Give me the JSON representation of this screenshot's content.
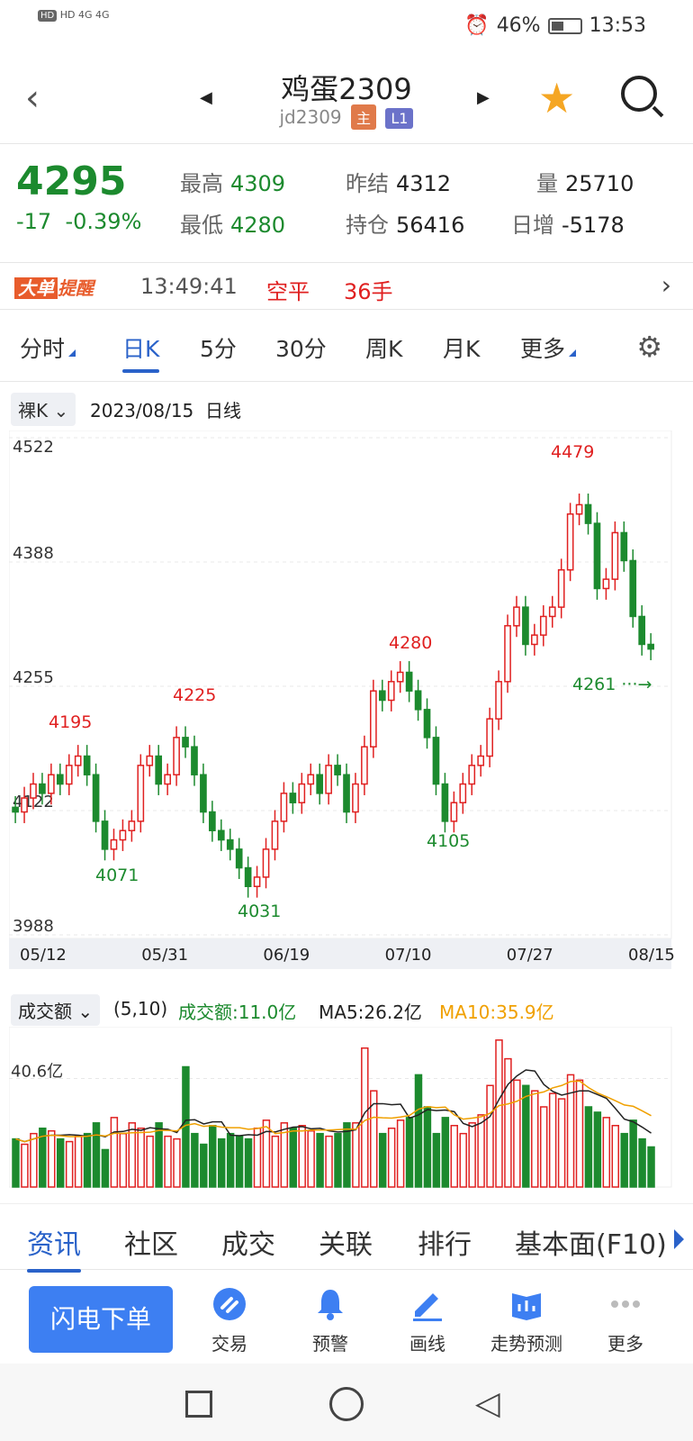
{
  "status": {
    "signal": "HD 4G 4G",
    "battery": "46%",
    "battery_level": 0.46,
    "time": "13:53"
  },
  "header": {
    "title": "鸡蛋2309",
    "code": "jd2309",
    "badge_main": "主",
    "badge_l1": "L1"
  },
  "quote": {
    "price": "4295",
    "change": "-17",
    "change_pct": "-0.39%",
    "high_label": "最高",
    "high": "4309",
    "low_label": "最低",
    "low": "4280",
    "prev_label": "昨结",
    "prev": "4312",
    "oi_label": "持仓",
    "oi": "56416",
    "vol_label": "量",
    "vol": "25710",
    "day_inc_label": "日增",
    "day_inc": "-5178"
  },
  "alert": {
    "tag_a": "大单",
    "tag_b": "提醒",
    "time": "13:49:41",
    "action": "空平",
    "hands": "36手"
  },
  "tabs": [
    "分时",
    "日K",
    "5分",
    "30分",
    "周K",
    "月K",
    "更多"
  ],
  "active_tab": 1,
  "kline": {
    "mode": "裸K",
    "date": "2023/08/15",
    "period": "日线",
    "y_ticks": [
      "4522",
      "4388",
      "4255",
      "4122",
      "3988"
    ],
    "x_ticks": [
      "05/12",
      "05/31",
      "06/19",
      "07/10",
      "07/27",
      "08/15"
    ],
    "ylim": [
      3988,
      4522
    ],
    "annotations": [
      {
        "text": "4195",
        "color": "red"
      },
      {
        "text": "4071",
        "color": "green"
      },
      {
        "text": "4225",
        "color": "red"
      },
      {
        "text": "4031",
        "color": "green"
      },
      {
        "text": "4280",
        "color": "red"
      },
      {
        "text": "4105",
        "color": "green"
      },
      {
        "text": "4479",
        "color": "red"
      },
      {
        "text": "4261",
        "color": "green"
      }
    ]
  },
  "volume": {
    "mode": "成交额",
    "params": "(5,10)",
    "amount": "成交额:11.0亿",
    "ma5": "MA5:26.2亿",
    "ma10": "MA10:35.9亿",
    "y_tick": "40.6亿"
  },
  "chart_data": {
    "type": "bar",
    "title": "",
    "xlabel": "",
    "ylabel": "",
    "candles_close": [
      4120,
      4135,
      4150,
      4140,
      4160,
      4150,
      4170,
      4180,
      4160,
      4110,
      4080,
      4090,
      4100,
      4110,
      4170,
      4180,
      4150,
      4160,
      4200,
      4190,
      4160,
      4120,
      4100,
      4090,
      4080,
      4060,
      4040,
      4050,
      4080,
      4110,
      4140,
      4130,
      4150,
      4160,
      4140,
      4170,
      4160,
      4120,
      4150,
      4190,
      4250,
      4240,
      4260,
      4270,
      4250,
      4230,
      4200,
      4150,
      4110,
      4130,
      4150,
      4170,
      4180,
      4220,
      4260,
      4320,
      4340,
      4300,
      4310,
      4330,
      4340,
      4380,
      4440,
      4450,
      4430,
      4360,
      4370,
      4420,
      4390,
      4330,
      4300,
      4295
    ],
    "volumes": [
      18,
      16,
      20,
      22,
      21,
      18,
      17,
      19,
      20,
      24,
      14,
      26,
      20,
      24,
      22,
      19,
      24,
      19,
      18,
      45,
      20,
      16,
      23,
      18,
      20,
      19,
      18,
      22,
      25,
      19,
      24,
      22,
      23,
      21,
      20,
      19,
      20,
      24,
      24,
      52,
      36,
      20,
      22,
      25,
      26,
      42,
      30,
      20,
      26,
      23,
      20,
      24,
      27,
      38,
      55,
      48,
      40,
      38,
      36,
      30,
      35,
      33,
      42,
      40,
      30,
      28,
      26,
      23,
      20,
      25,
      18,
      15
    ],
    "ylim": [
      3988,
      4522
    ]
  },
  "news_tabs": [
    "资讯",
    "社区",
    "成交",
    "关联",
    "排行",
    "基本面(F10)"
  ],
  "toolbar": {
    "flash": "闪电下单",
    "items": [
      "交易",
      "预警",
      "画线",
      "走势预测",
      "更多"
    ]
  },
  "colors": {
    "up": "#e02020",
    "down": "#1c8a2e",
    "accent": "#2a62c9",
    "ma10": "#f0a000"
  }
}
